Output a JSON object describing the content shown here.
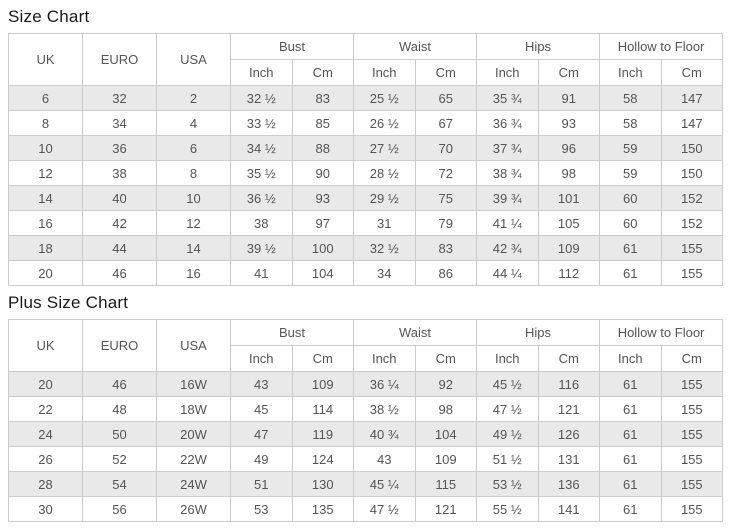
{
  "colors": {
    "stripe_row_bg": "#e9e9e9",
    "table_border": "#cccccc",
    "cell_text": "#555555",
    "title_text": "#1a1a1a",
    "page_bg": "#ffffff"
  },
  "columns": {
    "uk": "UK",
    "euro": "EURO",
    "usa": "USA",
    "groups": [
      "Bust",
      "Waist",
      "Hips",
      "Hollow to Floor"
    ],
    "sub": [
      "Inch",
      "Cm"
    ]
  },
  "size_chart": {
    "title": "Size Chart",
    "rows": [
      [
        "6",
        "32",
        "2",
        "32 ½",
        "83",
        "25 ½",
        "65",
        "35 ¾",
        "91",
        "58",
        "147"
      ],
      [
        "8",
        "34",
        "4",
        "33 ½",
        "85",
        "26 ½",
        "67",
        "36 ¾",
        "93",
        "58",
        "147"
      ],
      [
        "10",
        "36",
        "6",
        "34 ½",
        "88",
        "27 ½",
        "70",
        "37 ¾",
        "96",
        "59",
        "150"
      ],
      [
        "12",
        "38",
        "8",
        "35 ½",
        "90",
        "28 ½",
        "72",
        "38 ¾",
        "98",
        "59",
        "150"
      ],
      [
        "14",
        "40",
        "10",
        "36 ½",
        "93",
        "29 ½",
        "75",
        "39 ¾",
        "101",
        "60",
        "152"
      ],
      [
        "16",
        "42",
        "12",
        "38",
        "97",
        "31",
        "79",
        "41 ¼",
        "105",
        "60",
        "152"
      ],
      [
        "18",
        "44",
        "14",
        "39 ½",
        "100",
        "32 ½",
        "83",
        "42 ¾",
        "109",
        "61",
        "155"
      ],
      [
        "20",
        "46",
        "16",
        "41",
        "104",
        "34",
        "86",
        "44 ¼",
        "112",
        "61",
        "155"
      ]
    ]
  },
  "plus_size_chart": {
    "title": "Plus Size Chart",
    "rows": [
      [
        "20",
        "46",
        "16W",
        "43",
        "109",
        "36 ¼",
        "92",
        "45 ½",
        "116",
        "61",
        "155"
      ],
      [
        "22",
        "48",
        "18W",
        "45",
        "114",
        "38 ½",
        "98",
        "47 ½",
        "121",
        "61",
        "155"
      ],
      [
        "24",
        "50",
        "20W",
        "47",
        "119",
        "40 ¾",
        "104",
        "49 ½",
        "126",
        "61",
        "155"
      ],
      [
        "26",
        "52",
        "22W",
        "49",
        "124",
        "43",
        "109",
        "51 ½",
        "131",
        "61",
        "155"
      ],
      [
        "28",
        "54",
        "24W",
        "51",
        "130",
        "45 ¼",
        "115",
        "53 ½",
        "136",
        "61",
        "155"
      ],
      [
        "30",
        "56",
        "26W",
        "53",
        "135",
        "47 ½",
        "121",
        "55 ½",
        "141",
        "61",
        "155"
      ]
    ]
  }
}
